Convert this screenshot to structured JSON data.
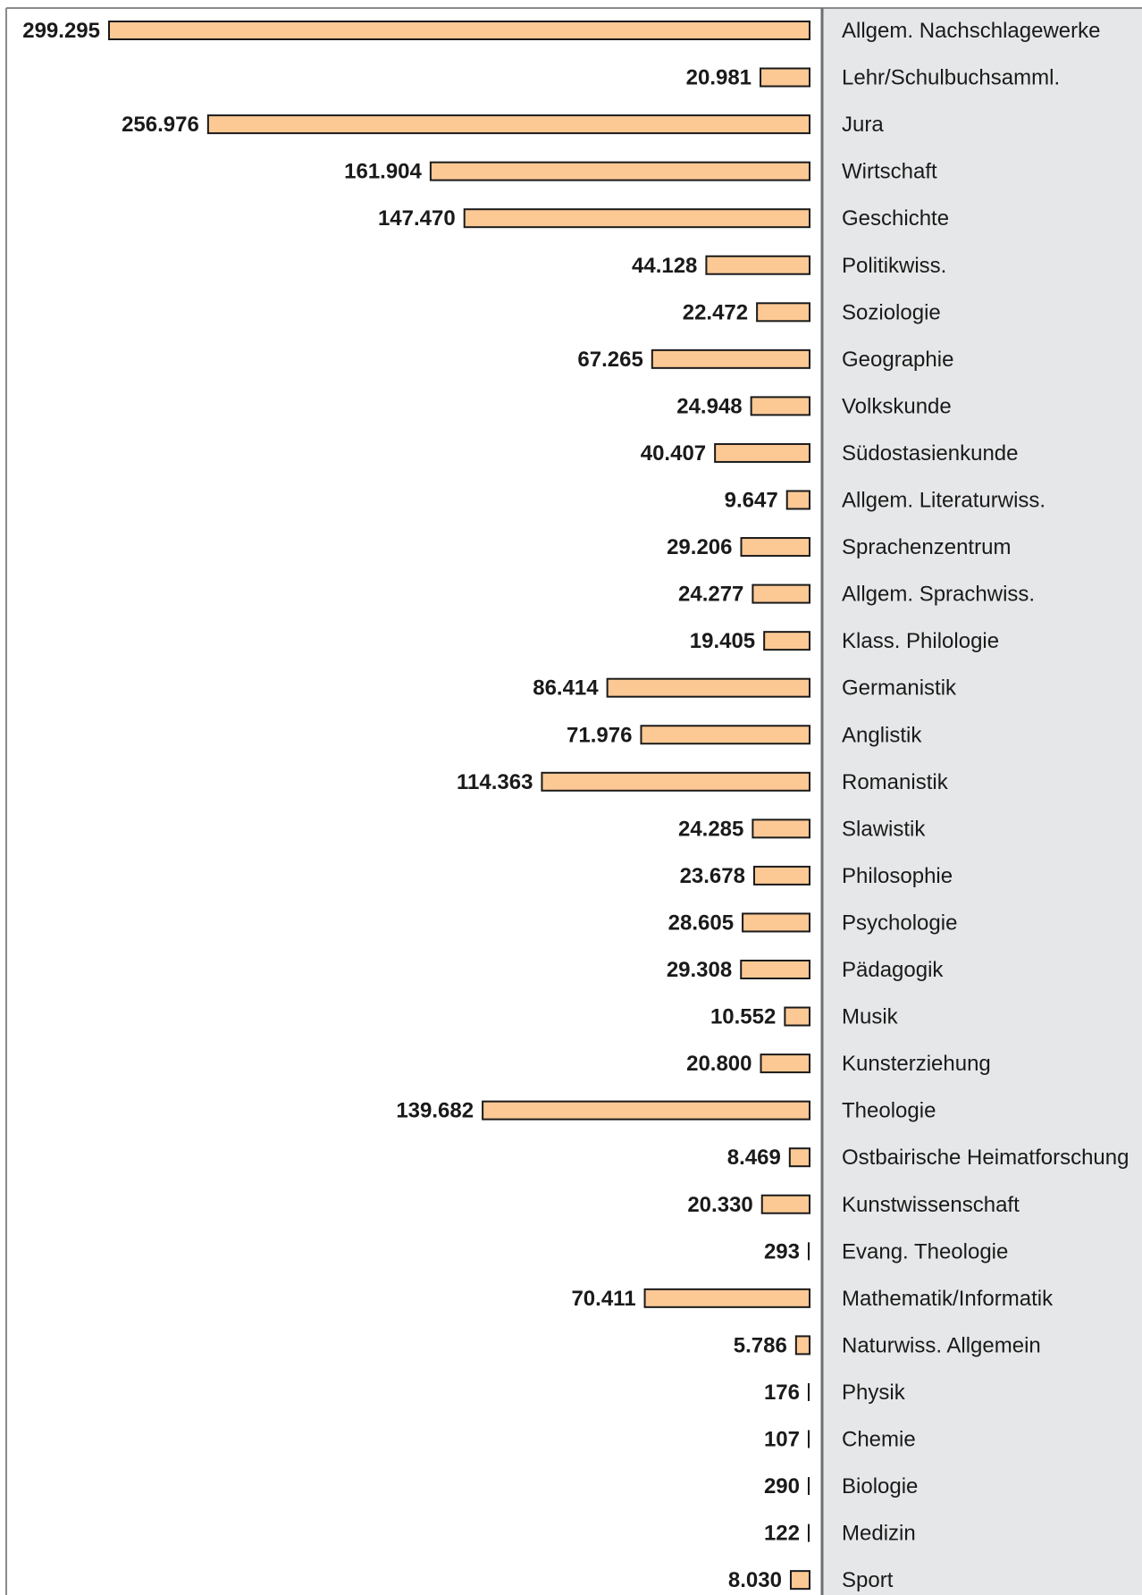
{
  "colors": {
    "bar_fill": "#fcc995",
    "bar_stroke": "#1a1a1a",
    "label_panel": "#e6e7e8",
    "axis": "#6d6e71",
    "frame": "#8a8a8a"
  },
  "chart_data": {
    "type": "bar",
    "orientation": "horizontal",
    "direction": "right-to-left",
    "title": "",
    "xlabel": "",
    "ylabel": "",
    "grid": false,
    "legend": "none",
    "xlim": [
      0,
      300000
    ],
    "categories": [
      "Allgem. Nachschlagewerke",
      "Lehr/Schulbuchsamml.",
      "Jura",
      "Wirtschaft",
      "Geschichte",
      "Politikwiss.",
      "Soziologie",
      "Geographie",
      "Volkskunde",
      "Südostasienkunde",
      "Allgem. Literaturwiss.",
      "Sprachenzentrum",
      "Allgem. Sprachwiss.",
      "Klass. Philologie",
      "Germanistik",
      "Anglistik",
      "Romanistik",
      "Slawistik",
      "Philosophie",
      "Psychologie",
      "Pädagogik",
      "Musik",
      "Kunsterziehung",
      "Theologie",
      "Ostbairische Heimatforschung",
      "Kunstwissenschaft",
      "Evang. Theologie",
      "Mathematik/Informatik",
      "Naturwiss. Allgemein",
      "Physik",
      "Chemie",
      "Biologie",
      "Medizin",
      "Sport"
    ],
    "values": [
      299295,
      20981,
      256976,
      161904,
      147470,
      44128,
      22472,
      67265,
      24948,
      40407,
      9647,
      29206,
      24277,
      19405,
      86414,
      71976,
      114363,
      24285,
      23678,
      28605,
      29308,
      10552,
      20800,
      139682,
      8469,
      20330,
      293,
      70411,
      5786,
      176,
      107,
      290,
      122,
      8030
    ],
    "value_labels": [
      "299.295",
      "20.981",
      "256.976",
      "161.904",
      "147.470",
      "44.128",
      "22.472",
      "67.265",
      "24.948",
      "40.407",
      "9.647",
      "29.206",
      "24.277",
      "19.405",
      "86.414",
      "71.976",
      "114.363",
      "24.285",
      "23.678",
      "28.605",
      "29.308",
      "10.552",
      "20.800",
      "139.682",
      "8.469",
      "20.330",
      "293",
      "70.411",
      "5.786",
      "176",
      "107",
      "290",
      "122",
      "8.030"
    ]
  }
}
